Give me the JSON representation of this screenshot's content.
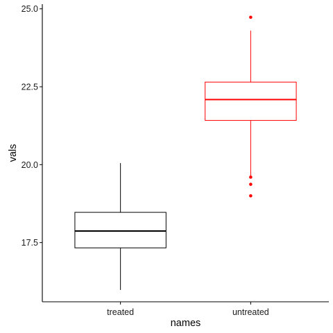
{
  "chart_data": {
    "type": "box",
    "xlabel": "names",
    "ylabel": "vals",
    "ylim": [
      15.6,
      25.15
    ],
    "yticks": [
      17.5,
      20.0,
      22.5,
      25.0
    ],
    "ytick_labels": [
      "17.5",
      "20.0",
      "22.5",
      "25.0"
    ],
    "categories": [
      "treated",
      "untreated"
    ],
    "grid": false,
    "boxes": [
      {
        "category": "treated",
        "color": "#000000",
        "whisker_low": 15.98,
        "q1": 17.33,
        "median": 17.87,
        "q3": 18.47,
        "whisker_high": 20.05,
        "outliers": []
      },
      {
        "category": "untreated",
        "color": "#ff0000",
        "whisker_low": 19.57,
        "q1": 21.42,
        "median": 22.09,
        "q3": 22.65,
        "whisker_high": 24.3,
        "outliers": [
          24.73,
          19.6,
          19.37,
          19.0
        ]
      }
    ]
  }
}
